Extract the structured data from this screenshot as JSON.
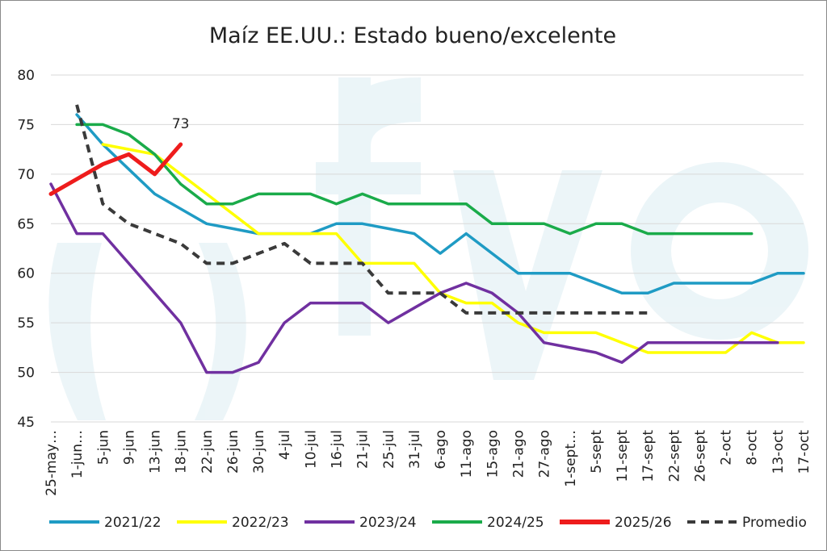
{
  "chart_data": {
    "type": "line",
    "title": "Maíz EE.UU.: Estado bueno/excelente",
    "xlabel": "",
    "ylabel": "",
    "ylim": [
      45,
      80
    ],
    "yticks": [
      45,
      50,
      55,
      60,
      65,
      70,
      75,
      80
    ],
    "grid": true,
    "legend_position": "bottom",
    "categories": [
      "25-may…",
      "1-jun…",
      "5-jun",
      "9-jun",
      "13-jun",
      "18-jun",
      "22-jun",
      "26-jun",
      "30-jun",
      "4-jul",
      "10-jul",
      "16-jul",
      "21-jul",
      "25-jul",
      "31-jul",
      "6-ago",
      "11-ago",
      "15-ago",
      "21-ago",
      "27-ago",
      "1-sept…",
      "5-sept",
      "11-sept",
      "17-sept",
      "22-sept",
      "26-sept",
      "2-oct",
      "8-oct",
      "13-oct",
      "17-oct"
    ],
    "series": [
      {
        "name": "2021/22",
        "color": "#1f9bc4",
        "dash": false,
        "values": [
          null,
          76,
          73,
          70.5,
          68,
          66.5,
          65,
          64.5,
          64,
          64,
          64,
          65,
          65,
          64.5,
          64,
          62,
          64,
          62,
          60,
          60,
          60,
          59,
          58,
          58,
          59,
          59,
          59,
          59,
          60,
          60
        ]
      },
      {
        "name": "2022/23",
        "color": "#ffff00",
        "dash": false,
        "values": [
          null,
          null,
          73,
          72.5,
          72,
          70,
          68,
          66,
          64,
          64,
          64,
          64,
          61,
          61,
          61,
          58,
          57,
          57,
          55,
          54,
          54,
          54,
          53,
          52,
          52,
          52,
          52,
          54,
          53,
          53
        ]
      },
      {
        "name": "2023/24",
        "color": "#7030a0",
        "dash": false,
        "values": [
          69,
          64,
          64,
          61,
          58,
          55,
          50,
          50,
          51,
          55,
          57,
          57,
          57,
          55,
          56.5,
          58,
          59,
          58,
          56,
          53,
          52.5,
          52,
          51,
          53,
          53,
          53,
          53,
          53,
          53,
          null
        ]
      },
      {
        "name": "2024/25",
        "color": "#1aab4a",
        "dash": false,
        "values": [
          null,
          75,
          75,
          74,
          72,
          69,
          67,
          67,
          68,
          68,
          68,
          67,
          68,
          67,
          67,
          67,
          67,
          65,
          65,
          65,
          64,
          65,
          65,
          64,
          64,
          64,
          64,
          64,
          null,
          null
        ]
      },
      {
        "name": "2025/26",
        "color": "#ee1c1c",
        "dash": false,
        "values": [
          68,
          69.5,
          71,
          72,
          70,
          73,
          null,
          null,
          null,
          null,
          null,
          null,
          null,
          null,
          null,
          null,
          null,
          null,
          null,
          null,
          null,
          null,
          null,
          null,
          null,
          null,
          null,
          null,
          null,
          null
        ]
      },
      {
        "name": "Promedio",
        "color": "#3a3a3a",
        "dash": true,
        "values": [
          null,
          77,
          67,
          65,
          64,
          63,
          61,
          61,
          62,
          63,
          61,
          61,
          61,
          58,
          58,
          58,
          56,
          56,
          56,
          56,
          56,
          56,
          56,
          56,
          null,
          null,
          null,
          null,
          null,
          null
        ]
      }
    ],
    "annotations": [
      {
        "text": "73",
        "series": "2025/26",
        "index": 5
      }
    ]
  }
}
